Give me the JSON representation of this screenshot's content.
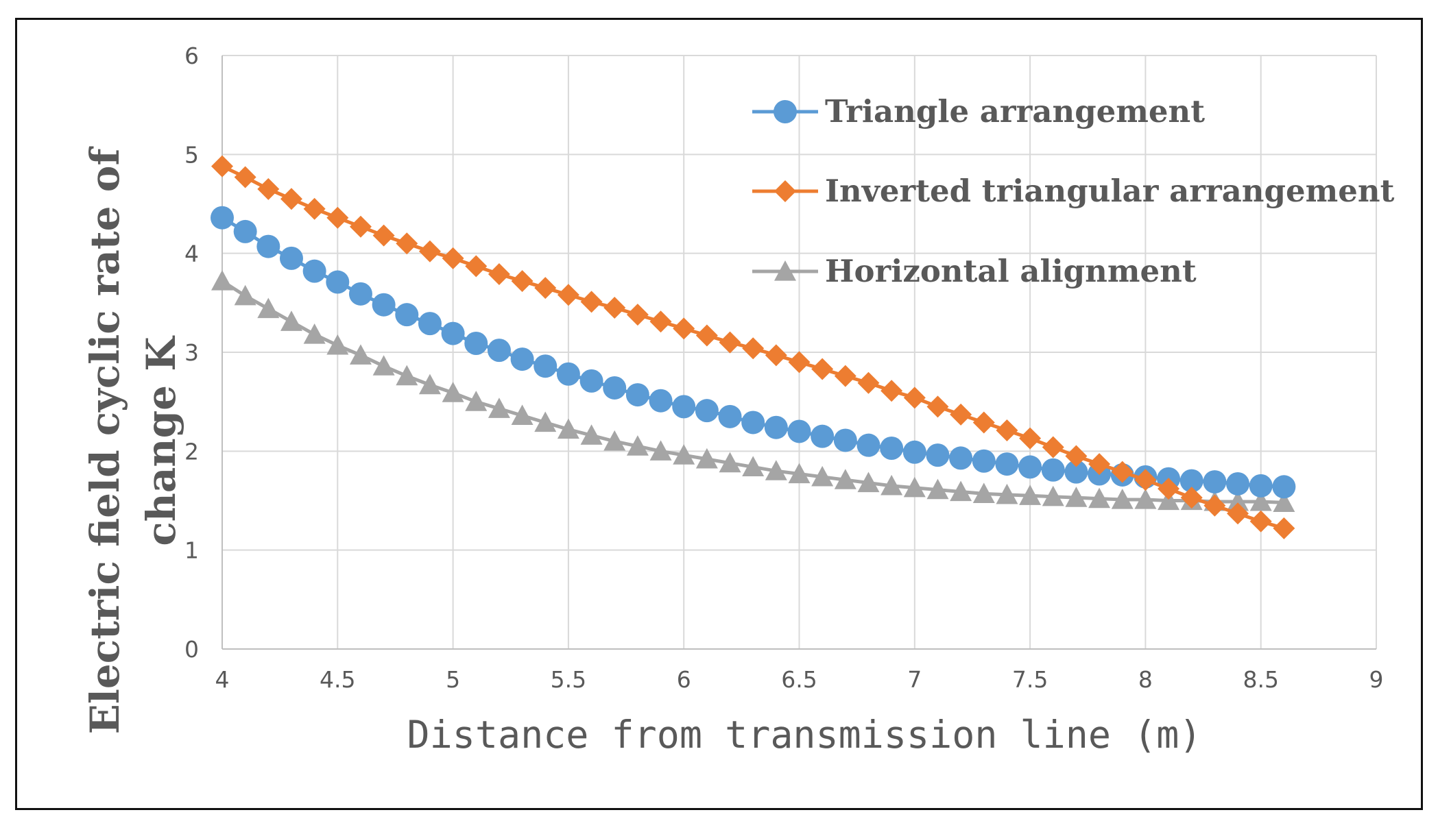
{
  "chart_data": {
    "type": "line",
    "title": "",
    "xlabel": "Distance from transmission line (m)",
    "ylabel_lines": [
      "Electric field cyclic rate of",
      "change K"
    ],
    "xlim": [
      4,
      9
    ],
    "ylim": [
      0,
      6
    ],
    "xticks": [
      4,
      4.5,
      5,
      5.5,
      6,
      6.5,
      7,
      7.5,
      8,
      8.5,
      9
    ],
    "xtick_labels": [
      "4",
      "4.5",
      "5",
      "5.5",
      "6",
      "6.5",
      "7",
      "7.5",
      "8",
      "8.5",
      "9"
    ],
    "yticks": [
      0,
      1,
      2,
      3,
      4,
      5,
      6
    ],
    "ytick_labels": [
      "0",
      "1",
      "2",
      "3",
      "4",
      "5",
      "6"
    ],
    "grid": true,
    "legend_position": "top-right",
    "x": [
      4.0,
      4.1,
      4.2,
      4.3,
      4.4,
      4.5,
      4.6,
      4.7,
      4.8,
      4.9,
      5.0,
      5.1,
      5.2,
      5.3,
      5.4,
      5.5,
      5.6,
      5.7,
      5.8,
      5.9,
      6.0,
      6.1,
      6.2,
      6.3,
      6.4,
      6.5,
      6.6,
      6.7,
      6.8,
      6.9,
      7.0,
      7.1,
      7.2,
      7.3,
      7.4,
      7.5,
      7.6,
      7.7,
      7.8,
      7.9,
      8.0,
      8.1,
      8.2,
      8.3,
      8.4,
      8.5,
      8.6
    ],
    "series": [
      {
        "name": "Triangle arrangement",
        "color": "#5B9BD5",
        "marker": "circle",
        "values": [
          4.36,
          4.22,
          4.07,
          3.95,
          3.82,
          3.71,
          3.59,
          3.48,
          3.38,
          3.29,
          3.19,
          3.09,
          3.02,
          2.93,
          2.86,
          2.78,
          2.71,
          2.64,
          2.57,
          2.51,
          2.45,
          2.41,
          2.35,
          2.29,
          2.24,
          2.2,
          2.15,
          2.11,
          2.06,
          2.03,
          1.99,
          1.96,
          1.93,
          1.9,
          1.87,
          1.84,
          1.81,
          1.79,
          1.77,
          1.76,
          1.74,
          1.72,
          1.7,
          1.69,
          1.67,
          1.65,
          1.64
        ]
      },
      {
        "name": "Inverted triangular arrangement",
        "color": "#ED7D31",
        "marker": "diamond",
        "values": [
          4.88,
          4.77,
          4.65,
          4.55,
          4.45,
          4.36,
          4.27,
          4.18,
          4.1,
          4.02,
          3.95,
          3.87,
          3.79,
          3.72,
          3.65,
          3.58,
          3.51,
          3.45,
          3.38,
          3.31,
          3.24,
          3.17,
          3.1,
          3.04,
          2.97,
          2.9,
          2.83,
          2.76,
          2.69,
          2.61,
          2.54,
          2.45,
          2.37,
          2.29,
          2.21,
          2.13,
          2.04,
          1.95,
          1.87,
          1.79,
          1.71,
          1.62,
          1.53,
          1.45,
          1.37,
          1.29,
          1.22
        ]
      },
      {
        "name": "Horizontal alignment",
        "color": "#A5A5A5",
        "marker": "triangle",
        "values": [
          3.72,
          3.57,
          3.44,
          3.31,
          3.18,
          3.07,
          2.97,
          2.86,
          2.76,
          2.67,
          2.59,
          2.5,
          2.43,
          2.36,
          2.29,
          2.22,
          2.16,
          2.1,
          2.05,
          2.0,
          1.96,
          1.92,
          1.88,
          1.84,
          1.8,
          1.77,
          1.74,
          1.71,
          1.68,
          1.65,
          1.63,
          1.61,
          1.59,
          1.57,
          1.56,
          1.55,
          1.54,
          1.53,
          1.52,
          1.51,
          1.51,
          1.5,
          1.5,
          1.49,
          1.49,
          1.49,
          1.48
        ]
      }
    ]
  },
  "colors": {
    "grid": "#d9d9d9",
    "axis": "#bfbfbf",
    "text": "#595959",
    "frame": "#111111"
  }
}
